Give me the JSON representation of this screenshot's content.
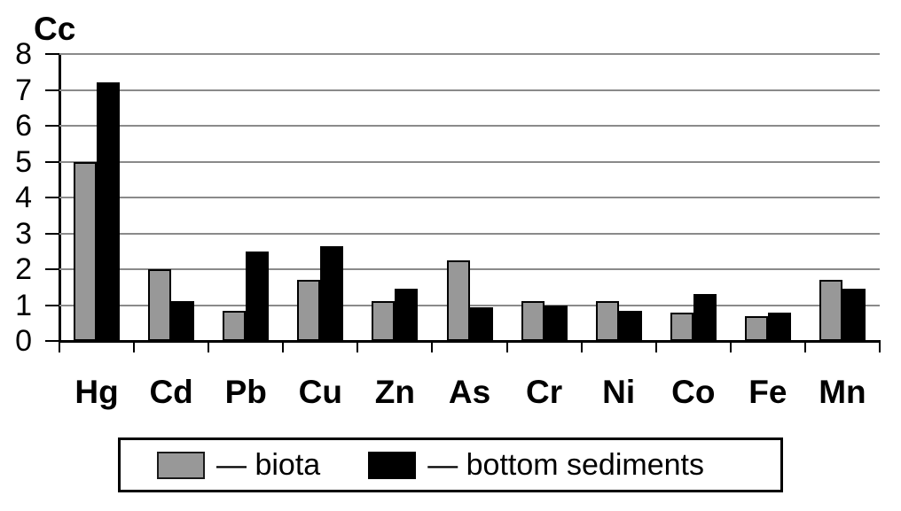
{
  "chart_data": {
    "type": "bar",
    "ylabel": "Cc",
    "xlabel": "",
    "categories": [
      "Hg",
      "Cd",
      "Pb",
      "Cu",
      "Zn",
      "As",
      "Cr",
      "Ni",
      "Co",
      "Fe",
      "Mn"
    ],
    "series": [
      {
        "name": "biota",
        "color": "#989898",
        "values": [
          5.0,
          2.0,
          0.85,
          1.7,
          1.1,
          2.25,
          1.1,
          1.1,
          0.8,
          0.7,
          1.7
        ]
      },
      {
        "name": "bottom sediments",
        "color": "#000000",
        "values": [
          7.2,
          1.1,
          2.5,
          2.65,
          1.45,
          0.95,
          1.0,
          0.85,
          1.3,
          0.8,
          1.45
        ]
      }
    ],
    "ylim": [
      0,
      8
    ],
    "yticks": [
      0,
      1,
      2,
      3,
      4,
      5,
      6,
      7,
      8
    ],
    "grid": true,
    "legend_position": "bottom",
    "legend": [
      {
        "swatch_color": "#989898",
        "label": "— biota"
      },
      {
        "swatch_color": "#000000",
        "label": "— bottom sediments"
      }
    ],
    "colors": {
      "grid": "#8a8a8a",
      "axis": "#000000",
      "bar_border": "#000000",
      "background": "#ffffff"
    }
  }
}
